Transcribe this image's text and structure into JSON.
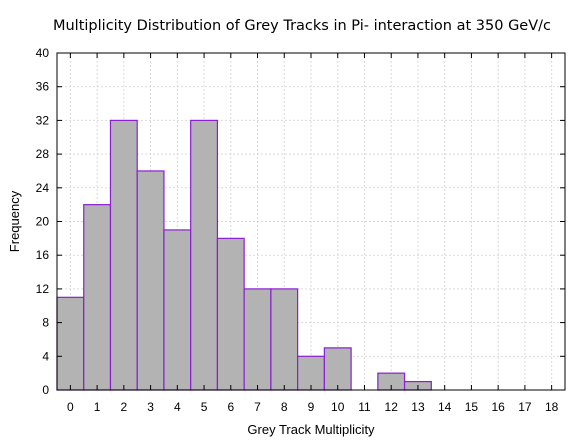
{
  "chart_data": {
    "type": "bar",
    "title": "Multiplicity Distribution of Grey Tracks in Pi- interaction at 350 GeV/c",
    "xlabel": "Grey Track Multiplicity",
    "ylabel": "Frequency",
    "x_ticks": [
      "0",
      "1",
      "2",
      "3",
      "4",
      "5",
      "6",
      "7",
      "8",
      "9",
      "10",
      "11",
      "12",
      "13",
      "14",
      "15",
      "16",
      "17",
      "18"
    ],
    "y_ticks": [
      "0",
      "4",
      "8",
      "12",
      "16",
      "20",
      "24",
      "28",
      "32",
      "36",
      "40"
    ],
    "xlim": [
      -0.5,
      18.5
    ],
    "ylim": [
      0,
      40
    ],
    "grid": true,
    "bar_fill": "#b3b3b3",
    "bar_edge": "#8a1fd1",
    "categories": [
      "0",
      "1",
      "2",
      "3",
      "4",
      "5",
      "6",
      "7",
      "8",
      "9",
      "10",
      "11",
      "12",
      "13"
    ],
    "values": [
      11,
      22,
      32,
      26,
      19,
      32,
      18,
      12,
      12,
      4,
      5,
      0,
      2,
      1
    ]
  }
}
